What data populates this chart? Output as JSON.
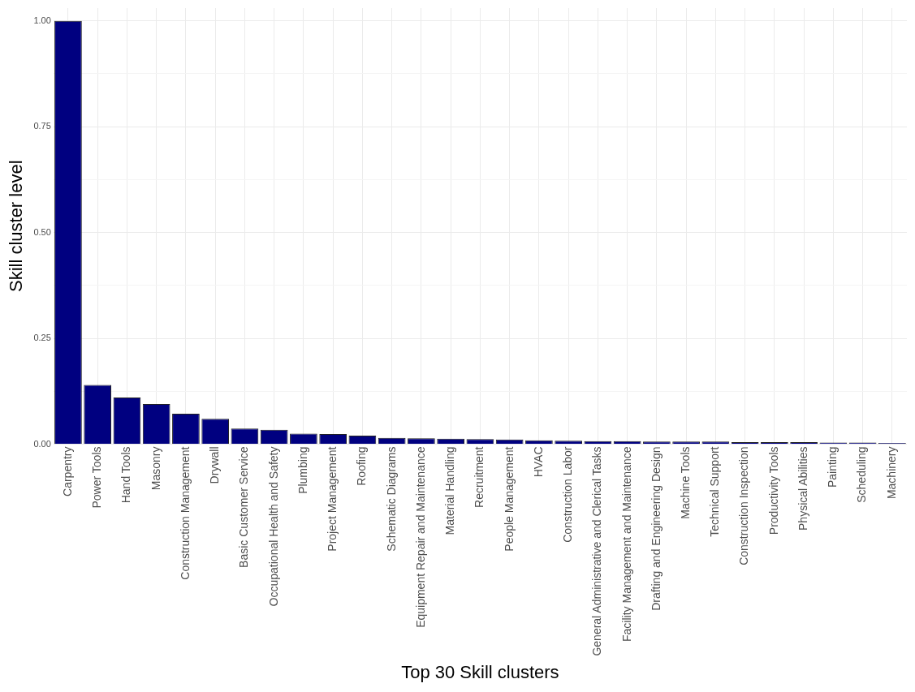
{
  "chart_data": {
    "type": "bar",
    "xlabel": "Top 30 Skill clusters",
    "ylabel": "Skill cluster level",
    "categories": [
      "Carpentry",
      "Power Tools",
      "Hand Tools",
      "Masonry",
      "Construction Management",
      "Drywall",
      "Basic Customer Service",
      "Occupational Health and Safety",
      "Plumbing",
      "Project Management",
      "Roofing",
      "Schematic Diagrams",
      "Equipment Repair and Maintenance",
      "Material Handling",
      "Recruitment",
      "People Management",
      "HVAC",
      "Construction Labor",
      "General Administrative and Clerical Tasks",
      "Facility Management and Maintenance",
      "Drafting and Engineering Design",
      "Machine Tools",
      "Technical Support",
      "Construction Inspection",
      "Productivity Tools",
      "Physical Abilities",
      "Painting",
      "Scheduling",
      "Machinery"
    ],
    "values": [
      1,
      0.14,
      0.11,
      0.095,
      0.072,
      0.06,
      0.037,
      0.034,
      0.025,
      0.024,
      0.02,
      0.015,
      0.014,
      0.013,
      0.012,
      0.011,
      0.009,
      0.008,
      0.007,
      0.007,
      0.006,
      0.006,
      0.006,
      0.005,
      0.005,
      0.005,
      0.004,
      0.004,
      0.003
    ],
    "color": "#000080",
    "ylim": [
      0,
      1.03
    ],
    "yticks": [
      {
        "value": 0,
        "label": "0.00"
      },
      {
        "value": 0.125,
        "label": null
      },
      {
        "value": 0.25,
        "label": "0.25"
      },
      {
        "value": 0.375,
        "label": null
      },
      {
        "value": 0.5,
        "label": "0.50"
      },
      {
        "value": 0.625,
        "label": null
      },
      {
        "value": 0.75,
        "label": "0.75"
      },
      {
        "value": 0.875,
        "label": null
      },
      {
        "value": 1,
        "label": "1.00"
      }
    ],
    "grid": true
  }
}
